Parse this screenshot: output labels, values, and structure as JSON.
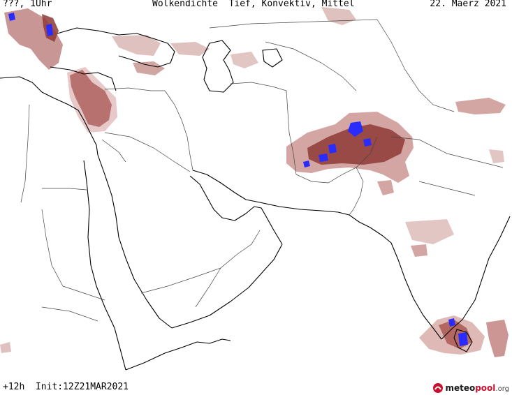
{
  "header": {
    "left": "???, 1Uhr",
    "center": "Wolkendichte  Tief, Konvektiv, Mittel",
    "right": "22. Maerz 2021"
  },
  "footer": {
    "run": "+12h  Init:12Z21MAR2021"
  },
  "logo": {
    "brand_a": "meteo",
    "brand_b": "pool",
    "tld": ".org"
  },
  "legend_colors": {
    "cloud_light": "#d9a4a1",
    "cloud_medium": "#b8625d",
    "cloud_dense": "#8e3a36",
    "convective": "#2a2cff",
    "coast": "#000000",
    "border": "#555555"
  }
}
